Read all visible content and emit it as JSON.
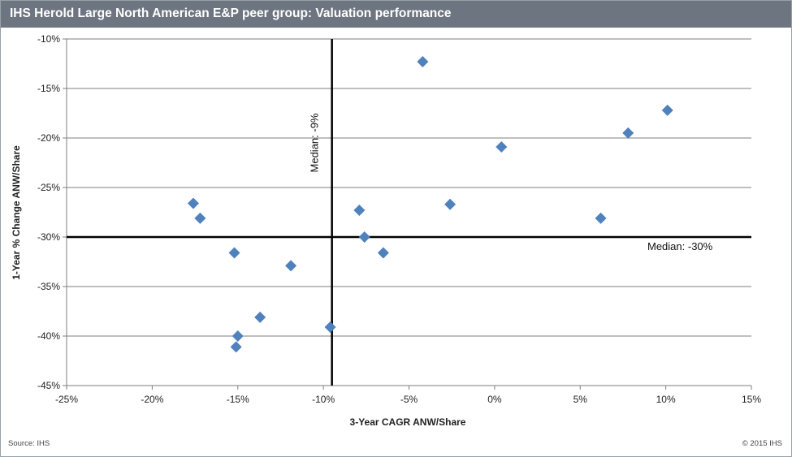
{
  "title": "IHS Herold Large North American E&P peer group: Valuation performance",
  "footer": {
    "source": "Source: IHS",
    "copyright": "© 2015 IHS"
  },
  "chart_data": {
    "type": "scatter",
    "xlabel": "3-Year CAGR ANW/Share",
    "ylabel": "1-Year % Change ANW/Share",
    "xlim": [
      -25,
      15
    ],
    "ylim": [
      -45,
      -10
    ],
    "x_ticks": [
      -25,
      -20,
      -15,
      -10,
      -5,
      0,
      5,
      10,
      15
    ],
    "x_tick_labels": [
      "-25%",
      "-20%",
      "-15%",
      "-10%",
      "-5%",
      "0%",
      "5%",
      "10%",
      "15%"
    ],
    "y_ticks": [
      -10,
      -15,
      -20,
      -25,
      -30,
      -35,
      -40,
      -45
    ],
    "y_tick_labels": [
      "-10%",
      "-15%",
      "-20%",
      "-25%",
      "-30%",
      "-35%",
      "-40%",
      "-45%"
    ],
    "grid": "horizontal",
    "marker_color": "#4f81bd",
    "points": [
      {
        "x": -17.6,
        "y": -26.6
      },
      {
        "x": -17.2,
        "y": -28.1
      },
      {
        "x": -15.2,
        "y": -31.6
      },
      {
        "x": -15.0,
        "y": -40.0
      },
      {
        "x": -15.1,
        "y": -41.1
      },
      {
        "x": -13.7,
        "y": -38.1
      },
      {
        "x": -11.9,
        "y": -32.9
      },
      {
        "x": -9.6,
        "y": -39.1
      },
      {
        "x": -7.9,
        "y": -27.3
      },
      {
        "x": -7.6,
        "y": -30.0
      },
      {
        "x": -6.5,
        "y": -31.6
      },
      {
        "x": -4.2,
        "y": -12.3
      },
      {
        "x": -2.6,
        "y": -26.7
      },
      {
        "x": 0.4,
        "y": -20.9
      },
      {
        "x": 6.2,
        "y": -28.1
      },
      {
        "x": 7.8,
        "y": -19.5
      },
      {
        "x": 10.1,
        "y": -17.2
      }
    ],
    "median_x": {
      "value": -9.5,
      "label": "Median: -9%"
    },
    "median_y": {
      "value": -30,
      "label": "Median: -30%"
    }
  }
}
